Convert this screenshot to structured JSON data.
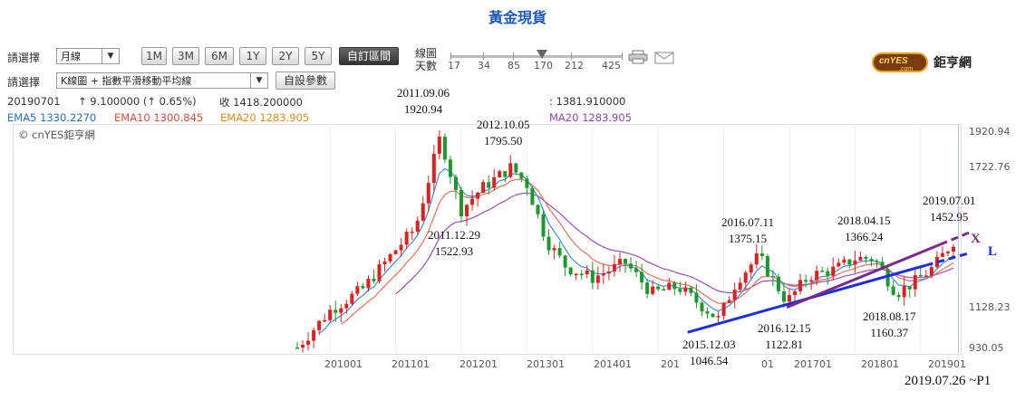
{
  "title": "黃金現貨",
  "controls": {
    "period_label": "請選擇",
    "period_value": "月線",
    "range_buttons": [
      "1M",
      "3M",
      "6M",
      "1Y",
      "2Y",
      "5Y",
      "自訂區間"
    ],
    "active_range": "自訂區間",
    "line_count_label": "線圖",
    "days_label": "天數",
    "slider_ticks": [
      "17",
      "34",
      "85",
      "170",
      "212",
      "425"
    ],
    "slider_value": "170",
    "indicator_label": "請選擇",
    "indicator_value": "K線圖 + 指數平滑移動平均線",
    "custom_params_button": "自設參數",
    "print_icon": "printer-icon",
    "mail_icon": "mail-icon"
  },
  "logo": {
    "brand": "cnYES",
    "sub": ".com",
    "name": "鉅亨網"
  },
  "info": {
    "date": "20190701",
    "change": "↑ 9.100000 (↑ 0.65%)",
    "close": "收 1418.200000",
    "low_fragment": ": 1381.910000",
    "ema5": "EMA5 1330.2270",
    "ema10": "EMA10 1300.845",
    "ema20": "EMA20 1283.905",
    "ema20b": "MA20 1283.905"
  },
  "watermark": "© cnYES鉅亨網",
  "footer": "2019.07.26 ~P1",
  "trendlines": {
    "x_label": "X",
    "l_label": "L",
    "x_color": "#7b2a8a",
    "l_color": "#1a2ee0"
  },
  "annotations": [
    {
      "date": "2011.09.06",
      "value": "1920.94"
    },
    {
      "date": "2012.10.05",
      "value": "1795.50"
    },
    {
      "date": "2011.12.29",
      "value": "1522.93"
    },
    {
      "date": "2016.07.11",
      "value": "1375.15"
    },
    {
      "date": "2018.04.15",
      "value": "1366.24"
    },
    {
      "date": "2019.07.01",
      "value": "1452.95"
    },
    {
      "date": "2016.12.15",
      "value": "1122.81"
    },
    {
      "date": "2018.08.17",
      "value": "1160.37"
    },
    {
      "date": "2015.12.03",
      "value": "1046.54"
    }
  ],
  "chart_data": {
    "type": "candlestick",
    "y_ticks": [
      "1920.94",
      "1722.76",
      "1128.23",
      "930.05"
    ],
    "x_ticks": [
      "201001",
      "201101",
      "201201",
      "201301",
      "201401",
      "201",
      "01",
      "201701",
      "201801",
      "201901"
    ],
    "ylim": [
      930.05,
      1920.94
    ],
    "colors": {
      "up": "#e0201e",
      "down": "#1a9a2a",
      "ema5": "#3b8de0",
      "ema10": "#e8705a",
      "ema20": "#f0a040",
      "ema20b": "#9b4dbf"
    },
    "key_points": [
      {
        "x": 2011.68,
        "y": 1920.94
      },
      {
        "x": 2012.76,
        "y": 1795.5
      },
      {
        "x": 2011.99,
        "y": 1522.93
      },
      {
        "x": 2016.53,
        "y": 1375.15
      },
      {
        "x": 2018.29,
        "y": 1366.24
      },
      {
        "x": 2019.5,
        "y": 1452.95
      },
      {
        "x": 2016.96,
        "y": 1122.81
      },
      {
        "x": 2018.63,
        "y": 1160.37
      },
      {
        "x": 2015.92,
        "y": 1046.54
      }
    ]
  }
}
